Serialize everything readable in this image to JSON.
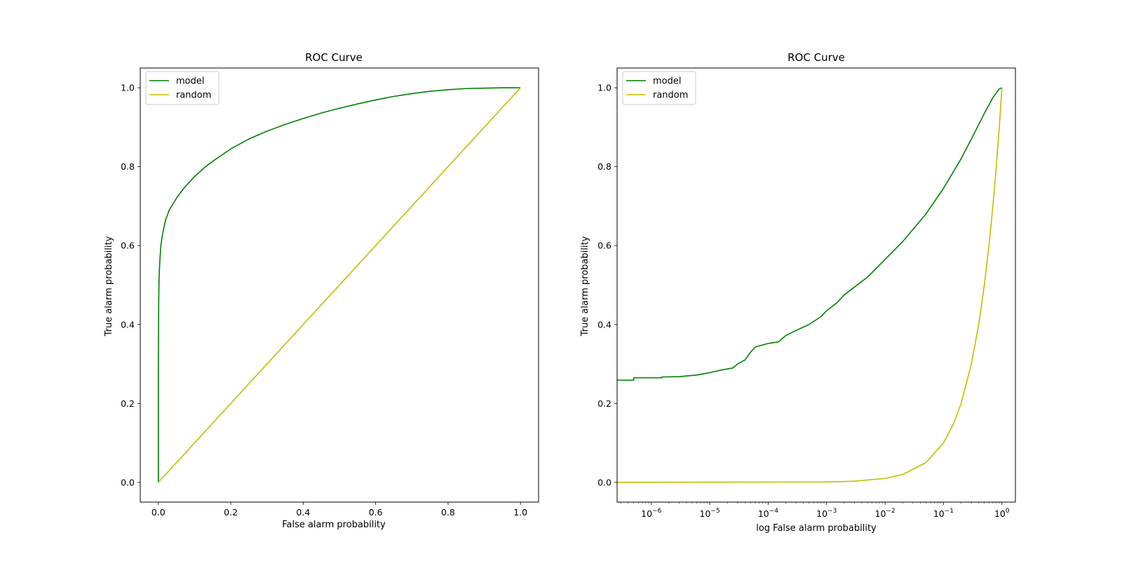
{
  "chart_data": [
    {
      "type": "line",
      "title": "ROC Curve",
      "xlabel": "False alarm probability",
      "ylabel": "True alarm probability",
      "xscale": "linear",
      "xlim": [
        -0.05,
        1.05
      ],
      "ylim": [
        -0.05,
        1.05
      ],
      "xticks": [
        0.0,
        0.2,
        0.4,
        0.6,
        0.8,
        1.0
      ],
      "xtick_labels": [
        "0.0",
        "0.2",
        "0.4",
        "0.6",
        "0.8",
        "1.0"
      ],
      "yticks": [
        0.0,
        0.2,
        0.4,
        0.6,
        0.8,
        1.0
      ],
      "ytick_labels": [
        "0.0",
        "0.2",
        "0.4",
        "0.6",
        "0.8",
        "1.0"
      ],
      "legend": "top-left",
      "series": [
        {
          "name": "model",
          "color": "#008000",
          "x": [
            0.0,
            0.0,
            0.001,
            0.002,
            0.004,
            0.007,
            0.01,
            0.015,
            0.02,
            0.03,
            0.04,
            0.05,
            0.07,
            0.1,
            0.13,
            0.16,
            0.2,
            0.25,
            0.3,
            0.35,
            0.4,
            0.45,
            0.5,
            0.55,
            0.6,
            0.65,
            0.7,
            0.75,
            0.8,
            0.85,
            0.9,
            0.95,
            1.0
          ],
          "y": [
            0.0,
            0.3,
            0.46,
            0.52,
            0.56,
            0.6,
            0.62,
            0.645,
            0.665,
            0.69,
            0.705,
            0.72,
            0.745,
            0.775,
            0.8,
            0.82,
            0.845,
            0.87,
            0.89,
            0.907,
            0.922,
            0.936,
            0.948,
            0.959,
            0.969,
            0.978,
            0.985,
            0.991,
            0.995,
            0.998,
            0.999,
            1.0,
            1.0
          ]
        },
        {
          "name": "random",
          "color": "#bfbf00",
          "x": [
            0.0,
            1.0
          ],
          "y": [
            0.0,
            1.0
          ]
        }
      ]
    },
    {
      "type": "line",
      "title": "ROC Curve",
      "xlabel": "log False alarm probability",
      "ylabel": "True alarm probability",
      "xscale": "log",
      "xlim": [
        2.6e-07,
        1.7
      ],
      "ylim": [
        -0.05,
        1.05
      ],
      "xticks": [
        1e-06,
        1e-05,
        0.0001,
        0.001,
        0.01,
        0.1,
        1
      ],
      "xtick_labels": [
        {
          "base": "10",
          "exp": "−6"
        },
        {
          "base": "10",
          "exp": "−5"
        },
        {
          "base": "10",
          "exp": "−4"
        },
        {
          "base": "10",
          "exp": "−3"
        },
        {
          "base": "10",
          "exp": "−2"
        },
        {
          "base": "10",
          "exp": "−1"
        },
        {
          "base": "10",
          "exp": "0"
        }
      ],
      "yticks": [
        0.0,
        0.2,
        0.4,
        0.6,
        0.8,
        1.0
      ],
      "ytick_labels": [
        "0.0",
        "0.2",
        "0.4",
        "0.6",
        "0.8",
        "1.0"
      ],
      "legend": "top-left",
      "series": [
        {
          "name": "model",
          "color": "#008000",
          "x": [
            2.6e-07,
            5e-07,
            5e-07,
            1.5e-06,
            1.5e-06,
            3e-06,
            6e-06,
            1e-05,
            1.5e-05,
            2.5e-05,
            3e-05,
            4e-05,
            5e-05,
            6e-05,
            8e-05,
            0.0001,
            0.00015,
            0.0002,
            0.0003,
            0.0005,
            0.0008,
            0.001,
            0.0015,
            0.002,
            0.003,
            0.005,
            0.01,
            0.02,
            0.05,
            0.1,
            0.2,
            0.3,
            0.5,
            0.7,
            0.9,
            1.0
          ],
          "y": [
            0.259,
            0.259,
            0.265,
            0.265,
            0.267,
            0.268,
            0.272,
            0.278,
            0.284,
            0.29,
            0.3,
            0.31,
            0.33,
            0.343,
            0.348,
            0.352,
            0.356,
            0.372,
            0.385,
            0.4,
            0.42,
            0.435,
            0.455,
            0.475,
            0.495,
            0.52,
            0.565,
            0.61,
            0.68,
            0.745,
            0.82,
            0.87,
            0.935,
            0.975,
            0.997,
            1.0
          ]
        },
        {
          "name": "random",
          "color": "#bfbf00",
          "x": [
            2.6e-07,
            0.001,
            0.003,
            0.01,
            0.02,
            0.05,
            0.1,
            0.15,
            0.2,
            0.3,
            0.4,
            0.5,
            0.6,
            0.7,
            0.8,
            0.9,
            1.0
          ],
          "y": [
            0.0,
            0.001,
            0.003,
            0.01,
            0.02,
            0.05,
            0.1,
            0.15,
            0.2,
            0.3,
            0.4,
            0.5,
            0.6,
            0.7,
            0.8,
            0.9,
            1.0
          ]
        }
      ]
    }
  ]
}
